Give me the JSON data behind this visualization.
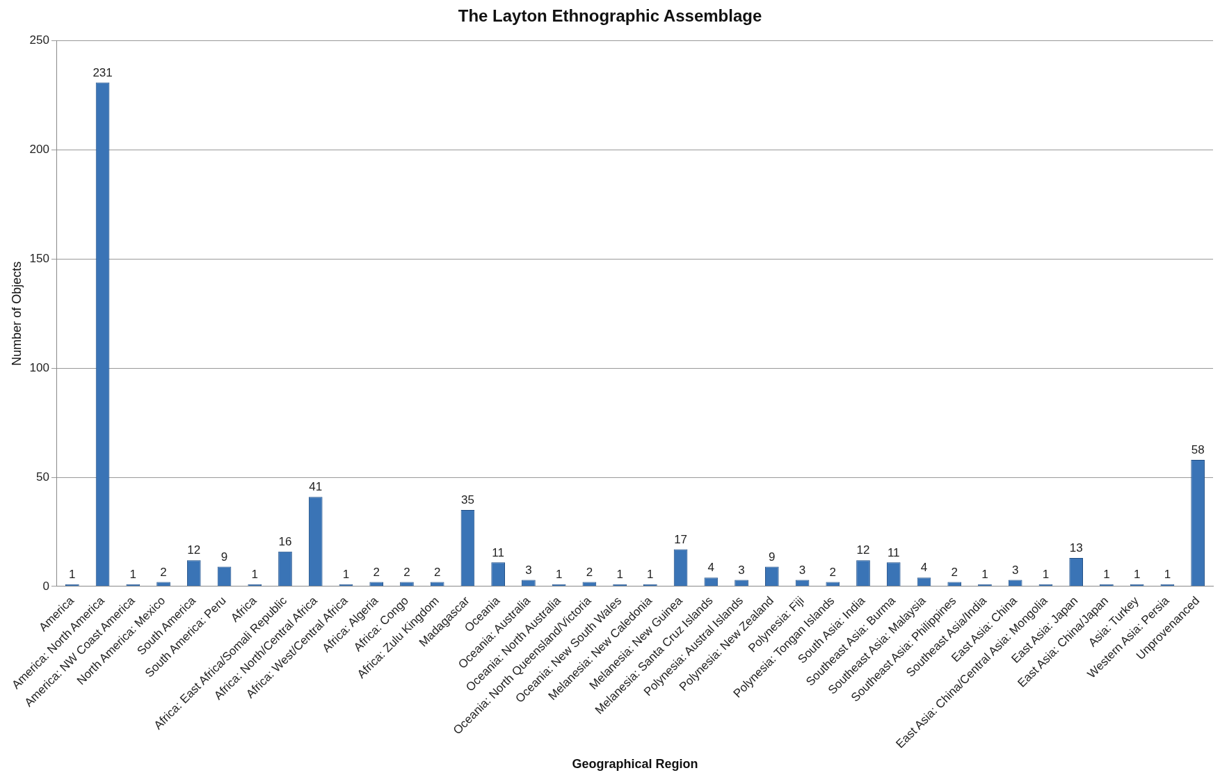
{
  "chart_data": {
    "type": "bar",
    "title": "The Layton Ethnographic Assemblage",
    "xlabel": "Geographical Region",
    "ylabel": "Number of Objects",
    "categories": [
      "America",
      "America: North America",
      "America: NW Coast America",
      "North America: Mexico",
      "South America",
      "South America: Peru",
      "Africa",
      "Africa: East Africa/Somali Republic",
      "Africa: North/Central Africa",
      "Africa: West/Central Africa",
      "Africa: Algeria",
      "Africa: Congo",
      "Africa: Zulu Kingdom",
      "Madagascar",
      "Oceania",
      "Oceania: Australia",
      "Oceania: North Australia",
      "Oceania: North Queensland/Victoria",
      "Oceania: New South Wales",
      "Melanesia: New Caledonia",
      "Melanesia: New Guinea",
      "Melanesia: Santa Cruz Islands",
      "Polynesia: Austral Islands",
      "Polynesia: New Zealand",
      "Polynesia: Fiji",
      "Polynesia: Tongan Islands",
      "South Asia: India",
      "Southeast Asia: Burma",
      "Southeast Asia: Malaysia",
      "Southeast Asia: Philippines",
      "Southeast Asia/India",
      "East Asia: China",
      "East Asia: China/Central Asia: Mongolia",
      "East Asia: Japan",
      "East Asia: China/Japan",
      "Asia: Turkey",
      "Western Asia: Persia",
      "Unprovenanced"
    ],
    "values": [
      1,
      231,
      1,
      2,
      12,
      9,
      1,
      16,
      41,
      1,
      2,
      2,
      2,
      35,
      11,
      3,
      1,
      2,
      1,
      1,
      17,
      4,
      3,
      9,
      3,
      2,
      12,
      11,
      4,
      2,
      1,
      3,
      1,
      13,
      1,
      1,
      1,
      58
    ],
    "color": "#3a74b6",
    "ylim": [
      0,
      250
    ],
    "yticks": [
      0,
      50,
      100,
      150,
      200,
      250
    ],
    "grid": "y",
    "data_labels": true,
    "legend": false
  }
}
